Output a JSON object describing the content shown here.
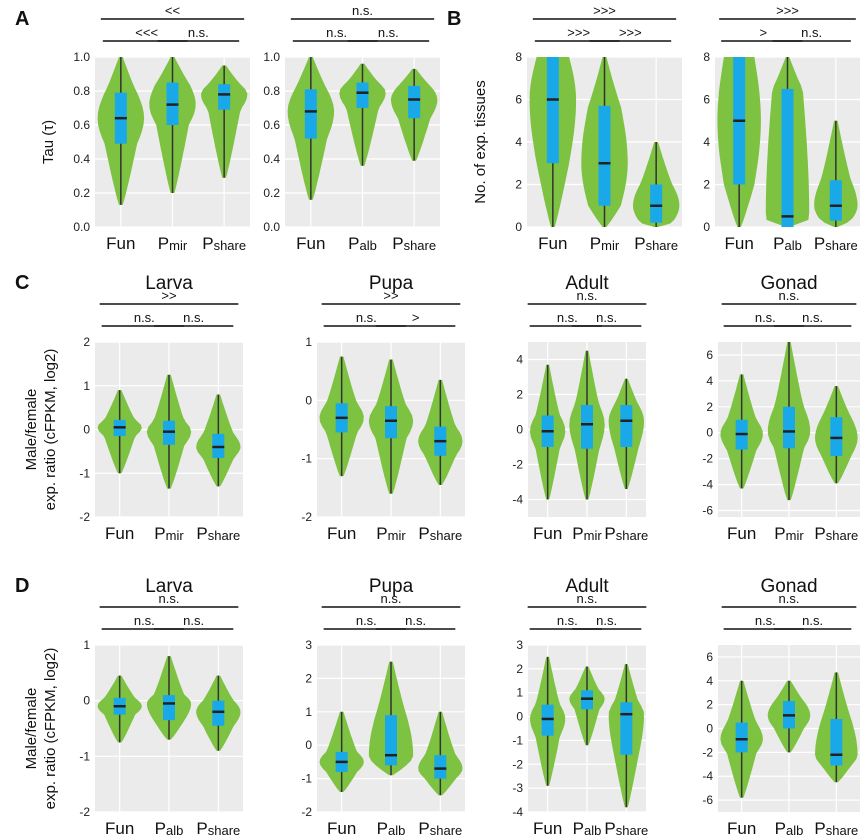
{
  "colors": {
    "violin": "#7dc241",
    "box": "#19a9e8",
    "panel_bg": "#ebebeb"
  },
  "chart_data": [
    {
      "id": "A1",
      "panel_label": "A",
      "type": "violin",
      "title": "",
      "ylabel": "Tau (τ)",
      "ylim": [
        0,
        1
      ],
      "yticks": [
        "0.0",
        "0.2",
        "0.4",
        "0.6",
        "0.8",
        "1.0"
      ],
      "categories": [
        {
          "main": "Fun",
          "sub": ""
        },
        {
          "main": "P",
          "sub": "mir"
        },
        {
          "main": "P",
          "sub": "share"
        }
      ],
      "comparisons": [
        {
          "from": 0,
          "to": 1,
          "label": "<<<"
        },
        {
          "from": 1,
          "to": 2,
          "label": "n.s."
        },
        {
          "from": 0,
          "to": 2,
          "label": "<<"
        }
      ],
      "series": [
        {
          "min": 0.13,
          "q1": 0.49,
          "median": 0.64,
          "q3": 0.79,
          "max": 1.0
        },
        {
          "min": 0.2,
          "q1": 0.6,
          "median": 0.72,
          "q3": 0.85,
          "max": 1.0
        },
        {
          "min": 0.29,
          "q1": 0.69,
          "median": 0.78,
          "q3": 0.84,
          "max": 0.95
        }
      ]
    },
    {
      "id": "A2",
      "type": "violin",
      "title": "",
      "ylabel": "",
      "ylim": [
        0,
        1
      ],
      "yticks": [
        "0.0",
        "0.2",
        "0.4",
        "0.6",
        "0.8",
        "1.0"
      ],
      "categories": [
        {
          "main": "Fun",
          "sub": ""
        },
        {
          "main": "P",
          "sub": "alb"
        },
        {
          "main": "P",
          "sub": "share"
        }
      ],
      "comparisons": [
        {
          "from": 0,
          "to": 1,
          "label": "n.s."
        },
        {
          "from": 1,
          "to": 2,
          "label": "n.s."
        },
        {
          "from": 0,
          "to": 2,
          "label": "n.s."
        }
      ],
      "series": [
        {
          "min": 0.16,
          "q1": 0.52,
          "median": 0.68,
          "q3": 0.81,
          "max": 1.0
        },
        {
          "min": 0.36,
          "q1": 0.7,
          "median": 0.79,
          "q3": 0.85,
          "max": 0.96
        },
        {
          "min": 0.39,
          "q1": 0.64,
          "median": 0.75,
          "q3": 0.83,
          "max": 0.93
        }
      ]
    },
    {
      "id": "B1",
      "panel_label": "B",
      "type": "violin",
      "title": "",
      "ylabel": "No. of exp. tissues",
      "ylim": [
        0,
        8
      ],
      "yticks": [
        "0",
        "2",
        "4",
        "6",
        "8"
      ],
      "categories": [
        {
          "main": "Fun",
          "sub": ""
        },
        {
          "main": "P",
          "sub": "mir"
        },
        {
          "main": "P",
          "sub": "share"
        }
      ],
      "comparisons": [
        {
          "from": 0,
          "to": 1,
          "label": ">>>"
        },
        {
          "from": 1,
          "to": 2,
          "label": ">>>"
        },
        {
          "from": 0,
          "to": 2,
          "label": ">>>"
        }
      ],
      "series": [
        {
          "min": 0,
          "q1": 3,
          "median": 6,
          "q3": 8,
          "max": 8
        },
        {
          "min": 0,
          "q1": 1,
          "median": 3,
          "q3": 5.7,
          "max": 8
        },
        {
          "min": 0,
          "q1": 0.2,
          "median": 1,
          "q3": 2,
          "max": 4
        }
      ]
    },
    {
      "id": "B2",
      "type": "violin",
      "title": "",
      "ylabel": "",
      "ylim": [
        0,
        8
      ],
      "yticks": [
        "0",
        "2",
        "4",
        "6",
        "8"
      ],
      "categories": [
        {
          "main": "Fun",
          "sub": ""
        },
        {
          "main": "P",
          "sub": "alb"
        },
        {
          "main": "P",
          "sub": "share"
        }
      ],
      "comparisons": [
        {
          "from": 0,
          "to": 1,
          "label": ">"
        },
        {
          "from": 1,
          "to": 2,
          "label": "n.s."
        },
        {
          "from": 0,
          "to": 2,
          "label": ">>>"
        }
      ],
      "series": [
        {
          "min": 0,
          "q1": 2,
          "median": 5,
          "q3": 8,
          "max": 8
        },
        {
          "min": 0,
          "q1": 0,
          "median": 0.5,
          "q3": 6.5,
          "max": 8
        },
        {
          "min": 0,
          "q1": 0.3,
          "median": 1,
          "q3": 2.2,
          "max": 5
        }
      ]
    },
    {
      "id": "C1",
      "panel_label": "C",
      "type": "violin",
      "title": "Larva",
      "ylabel": "Male/female exp. ratio (cFPKM, log2)",
      "ylim": [
        -2,
        2
      ],
      "yticks": [
        "-2",
        "-1",
        "0",
        "1",
        "2"
      ],
      "categories": [
        {
          "main": "Fun",
          "sub": ""
        },
        {
          "main": "P",
          "sub": "mir"
        },
        {
          "main": "P",
          "sub": "share"
        }
      ],
      "comparisons": [
        {
          "from": 0,
          "to": 1,
          "label": "n.s."
        },
        {
          "from": 1,
          "to": 2,
          "label": "n.s."
        },
        {
          "from": 0,
          "to": 2,
          "label": ">>"
        }
      ],
      "series": [
        {
          "min": -1.0,
          "q1": -0.15,
          "median": 0.05,
          "q3": 0.22,
          "max": 0.9
        },
        {
          "min": -1.35,
          "q1": -0.35,
          "median": -0.05,
          "q3": 0.2,
          "max": 1.25
        },
        {
          "min": -1.3,
          "q1": -0.65,
          "median": -0.4,
          "q3": -0.1,
          "max": 0.8
        }
      ]
    },
    {
      "id": "C2",
      "type": "violin",
      "title": "Pupa",
      "ylabel": "",
      "ylim": [
        -2,
        1
      ],
      "yticks": [
        "-2",
        "-1",
        "0",
        "1"
      ],
      "categories": [
        {
          "main": "Fun",
          "sub": ""
        },
        {
          "main": "P",
          "sub": "mir"
        },
        {
          "main": "P",
          "sub": "share"
        }
      ],
      "comparisons": [
        {
          "from": 0,
          "to": 1,
          "label": "n.s."
        },
        {
          "from": 1,
          "to": 2,
          "label": ">"
        },
        {
          "from": 0,
          "to": 2,
          "label": ">>"
        }
      ],
      "series": [
        {
          "min": -1.3,
          "q1": -0.55,
          "median": -0.3,
          "q3": -0.05,
          "max": 0.75
        },
        {
          "min": -1.6,
          "q1": -0.65,
          "median": -0.35,
          "q3": -0.1,
          "max": 0.7
        },
        {
          "min": -1.45,
          "q1": -0.95,
          "median": -0.7,
          "q3": -0.45,
          "max": 0.35
        }
      ]
    },
    {
      "id": "C3",
      "type": "violin",
      "title": "Adult",
      "ylabel": "",
      "ylim": [
        -5,
        5
      ],
      "yticks": [
        "-4",
        "-2",
        "0",
        "2",
        "4"
      ],
      "categories": [
        {
          "main": "Fun",
          "sub": ""
        },
        {
          "main": "P",
          "sub": "mir"
        },
        {
          "main": "P",
          "sub": "share"
        }
      ],
      "comparisons": [
        {
          "from": 0,
          "to": 1,
          "label": "n.s."
        },
        {
          "from": 1,
          "to": 2,
          "label": "n.s."
        },
        {
          "from": 0,
          "to": 2,
          "label": "n.s."
        }
      ],
      "series": [
        {
          "min": -4.0,
          "q1": -1.0,
          "median": -0.1,
          "q3": 0.8,
          "max": 3.7
        },
        {
          "min": -4.0,
          "q1": -1.1,
          "median": 0.3,
          "q3": 1.4,
          "max": 4.5
        },
        {
          "min": -3.4,
          "q1": -1.0,
          "median": 0.5,
          "q3": 1.4,
          "max": 2.9
        }
      ]
    },
    {
      "id": "C4",
      "type": "violin",
      "title": "Gonad",
      "ylabel": "",
      "ylim": [
        -6.5,
        7
      ],
      "yticks": [
        "-6",
        "-4",
        "-2",
        "0",
        "2",
        "4",
        "6"
      ],
      "categories": [
        {
          "main": "Fun",
          "sub": ""
        },
        {
          "main": "P",
          "sub": "mir"
        },
        {
          "main": "P",
          "sub": "share"
        }
      ],
      "comparisons": [
        {
          "from": 0,
          "to": 1,
          "label": "n.s."
        },
        {
          "from": 1,
          "to": 2,
          "label": "n.s."
        },
        {
          "from": 0,
          "to": 2,
          "label": "n.s."
        }
      ],
      "series": [
        {
          "min": -4.3,
          "q1": -1.3,
          "median": -0.1,
          "q3": 1.0,
          "max": 4.5
        },
        {
          "min": -5.2,
          "q1": -1.2,
          "median": 0.1,
          "q3": 2.0,
          "max": 7.0
        },
        {
          "min": -3.9,
          "q1": -1.8,
          "median": -0.4,
          "q3": 1.2,
          "max": 3.6
        }
      ]
    },
    {
      "id": "D1",
      "panel_label": "D",
      "type": "violin",
      "title": "Larva",
      "ylabel": "Male/female exp. ratio (cFPKM, log2)",
      "ylim": [
        -2,
        1
      ],
      "yticks": [
        "-2",
        "-1",
        "0",
        "1"
      ],
      "categories": [
        {
          "main": "Fun",
          "sub": ""
        },
        {
          "main": "P",
          "sub": "alb"
        },
        {
          "main": "P",
          "sub": "share"
        }
      ],
      "comparisons": [
        {
          "from": 0,
          "to": 1,
          "label": "n.s."
        },
        {
          "from": 1,
          "to": 2,
          "label": "n.s."
        },
        {
          "from": 0,
          "to": 2,
          "label": "n.s."
        }
      ],
      "series": [
        {
          "min": -0.75,
          "q1": -0.25,
          "median": -0.1,
          "q3": 0.05,
          "max": 0.45
        },
        {
          "min": -0.7,
          "q1": -0.35,
          "median": -0.05,
          "q3": 0.1,
          "max": 0.8
        },
        {
          "min": -0.9,
          "q1": -0.45,
          "median": -0.2,
          "q3": 0.0,
          "max": 0.45
        }
      ]
    },
    {
      "id": "D2",
      "type": "violin",
      "title": "Pupa",
      "ylabel": "",
      "ylim": [
        -2,
        3
      ],
      "yticks": [
        "-2",
        "-1",
        "0",
        "1",
        "2",
        "3"
      ],
      "categories": [
        {
          "main": "Fun",
          "sub": ""
        },
        {
          "main": "P",
          "sub": "alb"
        },
        {
          "main": "P",
          "sub": "share"
        }
      ],
      "comparisons": [
        {
          "from": 0,
          "to": 1,
          "label": "n.s."
        },
        {
          "from": 1,
          "to": 2,
          "label": "n.s."
        },
        {
          "from": 0,
          "to": 2,
          "label": "n.s."
        }
      ],
      "series": [
        {
          "min": -1.4,
          "q1": -0.8,
          "median": -0.5,
          "q3": -0.2,
          "max": 1.0
        },
        {
          "min": -0.9,
          "q1": -0.6,
          "median": -0.3,
          "q3": 0.9,
          "max": 2.5
        },
        {
          "min": -1.5,
          "q1": -1.0,
          "median": -0.7,
          "q3": -0.3,
          "max": 1.0
        }
      ]
    },
    {
      "id": "D3",
      "type": "violin",
      "title": "Adult",
      "ylabel": "",
      "ylim": [
        -4,
        3
      ],
      "yticks": [
        "-4",
        "-3",
        "-2",
        "-1",
        "0",
        "1",
        "2",
        "3"
      ],
      "categories": [
        {
          "main": "Fun",
          "sub": ""
        },
        {
          "main": "P",
          "sub": "alb"
        },
        {
          "main": "P",
          "sub": "share"
        }
      ],
      "comparisons": [
        {
          "from": 0,
          "to": 1,
          "label": "n.s."
        },
        {
          "from": 1,
          "to": 2,
          "label": "n.s."
        },
        {
          "from": 0,
          "to": 2,
          "label": "n.s."
        }
      ],
      "series": [
        {
          "min": -2.9,
          "q1": -0.8,
          "median": -0.1,
          "q3": 0.5,
          "max": 2.5
        },
        {
          "min": -1.2,
          "q1": 0.3,
          "median": 0.75,
          "q3": 1.1,
          "max": 2.1
        },
        {
          "min": -3.8,
          "q1": -1.6,
          "median": 0.1,
          "q3": 0.6,
          "max": 2.2
        }
      ]
    },
    {
      "id": "D4",
      "type": "violin",
      "title": "Gonad",
      "ylabel": "",
      "ylim": [
        -7,
        7
      ],
      "yticks": [
        "-6",
        "-4",
        "-2",
        "0",
        "2",
        "4",
        "6"
      ],
      "categories": [
        {
          "main": "Fun",
          "sub": ""
        },
        {
          "main": "P",
          "sub": "alb"
        },
        {
          "main": "P",
          "sub": "share"
        }
      ],
      "comparisons": [
        {
          "from": 0,
          "to": 1,
          "label": "n.s."
        },
        {
          "from": 1,
          "to": 2,
          "label": "n.s."
        },
        {
          "from": 0,
          "to": 2,
          "label": "n.s."
        }
      ],
      "series": [
        {
          "min": -5.8,
          "q1": -2.0,
          "median": -0.9,
          "q3": 0.5,
          "max": 4.0
        },
        {
          "min": -2.0,
          "q1": 0.0,
          "median": 1.1,
          "q3": 2.3,
          "max": 4.0
        },
        {
          "min": -4.5,
          "q1": -3.1,
          "median": -2.2,
          "q3": 0.8,
          "max": 4.7
        }
      ]
    }
  ]
}
